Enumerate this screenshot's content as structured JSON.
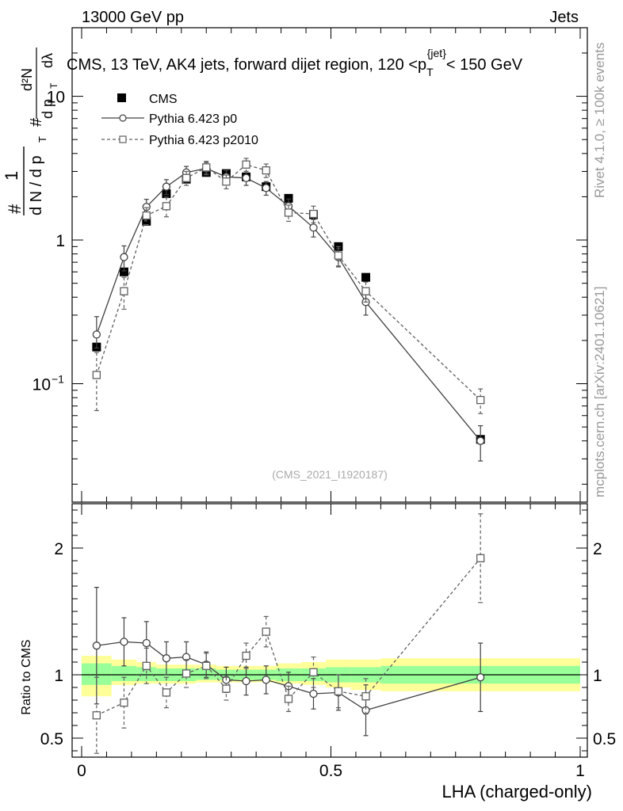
{
  "header": {
    "left": "13000 GeV pp",
    "right": "Jets"
  },
  "watermark": {
    "rivet": "Rivet 4.1.0, ≥ 100k events",
    "mcplots": "mcplots.cern.ch [arXiv:2401.10621]",
    "analysis": "(CMS_2021_I1920187)"
  },
  "colors": {
    "pythia_p0": "#404040",
    "pythia_p2010": "#606060",
    "band_inner": "#99ff99",
    "band_outer": "#ffff99"
  },
  "chart_data": [
    {
      "type": "line",
      "id": "main",
      "title": "CMS, 13 TeV, AK4 jets, forward dijet region, 120 <p_T^{jet}< 150 GeV",
      "title_parts": {
        "pre": "CMS, 13 TeV, AK4 jets, forward dijet region, 120 <p",
        "sub": "T",
        "sup": "{jet}",
        "post": "< 150 GeV"
      },
      "ylabel": "1/(dN/dp_T) d²N/(dp_T dλ)",
      "ylabel_parts": {
        "one": "1",
        "hash": "#",
        "den": "d N / d p",
        "T": "T",
        "d2N": "d²N",
        "dpT": "d p",
        "dlambda": "dλ"
      },
      "yscale": "log",
      "ylim": [
        0.015,
        30
      ],
      "xlim": [
        0,
        1
      ],
      "yticks": [
        {
          "v": 0.1,
          "label": "10",
          "exp": "−1"
        },
        {
          "v": 1,
          "label": "1"
        },
        {
          "v": 10,
          "label": "10"
        }
      ],
      "legend": [
        "CMS",
        "Pythia 6.423 p0",
        "Pythia 6.423 p2010"
      ],
      "series": [
        {
          "name": "CMS",
          "style": "data",
          "x": [
            0.03,
            0.085,
            0.13,
            0.17,
            0.21,
            0.25,
            0.29,
            0.33,
            0.37,
            0.415,
            0.465,
            0.515,
            0.57,
            0.8
          ],
          "y": [
            0.18,
            0.6,
            1.35,
            2.1,
            2.65,
            2.95,
            2.9,
            2.75,
            2.35,
            1.95,
            1.5,
            0.9,
            0.55,
            0.041
          ]
        },
        {
          "name": "Pythia 6.423 p0",
          "style": "solid",
          "x": [
            0.03,
            0.085,
            0.13,
            0.17,
            0.21,
            0.25,
            0.29,
            0.33,
            0.37,
            0.415,
            0.465,
            0.515,
            0.57,
            0.8
          ],
          "y": [
            0.22,
            0.76,
            1.7,
            2.35,
            2.95,
            3.15,
            2.75,
            2.7,
            2.3,
            1.72,
            1.22,
            0.76,
            0.37,
            0.04
          ],
          "err_lo": [
            0.043,
            0.15,
            0.22,
            0.28,
            0.3,
            0.31,
            0.29,
            0.3,
            0.25,
            0.21,
            0.17,
            0.11,
            0.07,
            0.011
          ],
          "err_hi": [
            0.073,
            0.15,
            0.22,
            0.28,
            0.3,
            0.31,
            0.29,
            0.3,
            0.25,
            0.21,
            0.17,
            0.11,
            0.07,
            0.011
          ]
        },
        {
          "name": "Pythia 6.423 p2010",
          "style": "dashed",
          "x": [
            0.03,
            0.085,
            0.13,
            0.17,
            0.21,
            0.25,
            0.29,
            0.33,
            0.37,
            0.415,
            0.465,
            0.515,
            0.57,
            0.8
          ],
          "y": [
            0.115,
            0.44,
            1.48,
            1.72,
            2.7,
            3.2,
            2.55,
            3.35,
            3.05,
            1.55,
            1.52,
            0.78,
            0.44,
            0.077
          ],
          "err_lo": [
            0.05,
            0.11,
            0.2,
            0.27,
            0.3,
            0.33,
            0.28,
            0.35,
            0.33,
            0.2,
            0.2,
            0.12,
            0.07,
            0.015
          ],
          "err_hi": [
            0.05,
            0.11,
            0.2,
            0.27,
            0.3,
            0.33,
            0.28,
            0.35,
            0.33,
            0.2,
            0.2,
            0.12,
            0.07,
            0.015
          ]
        }
      ]
    },
    {
      "type": "line",
      "id": "ratio",
      "ylabel": "Ratio to CMS",
      "xlabel": "LHA (charged-only)",
      "ylim": [
        0.35,
        2.35
      ],
      "xlim": [
        0,
        1
      ],
      "yticks": [
        {
          "v": 0.5,
          "label": "0.5"
        },
        {
          "v": 1,
          "label": "1"
        },
        {
          "v": 2,
          "label": "2"
        }
      ],
      "xticks": [
        {
          "v": 0,
          "label": "0"
        },
        {
          "v": 0.5,
          "label": "0.5"
        },
        {
          "v": 1,
          "label": "1"
        }
      ],
      "band_edges": [
        0,
        0.06,
        0.11,
        0.15,
        0.19,
        0.23,
        0.27,
        0.31,
        0.35,
        0.39,
        0.44,
        0.49,
        0.54,
        0.6,
        1.0
      ],
      "band_inner_lo": [
        0.92,
        0.95,
        0.95,
        0.95,
        0.95,
        0.96,
        0.96,
        0.96,
        0.96,
        0.95,
        0.95,
        0.94,
        0.94,
        0.93
      ],
      "band_inner_hi": [
        1.09,
        1.07,
        1.06,
        1.05,
        1.05,
        1.05,
        1.04,
        1.04,
        1.04,
        1.05,
        1.05,
        1.06,
        1.06,
        1.07
      ],
      "band_outer_lo": [
        0.83,
        0.92,
        0.93,
        0.93,
        0.93,
        0.94,
        0.94,
        0.94,
        0.94,
        0.93,
        0.92,
        0.9,
        0.88,
        0.87
      ],
      "band_outer_hi": [
        1.15,
        1.12,
        1.1,
        1.08,
        1.08,
        1.08,
        1.07,
        1.07,
        1.07,
        1.09,
        1.1,
        1.12,
        1.12,
        1.13
      ],
      "series": [
        {
          "name": "Pythia 6.423 p0",
          "style": "solid",
          "x": [
            0.03,
            0.085,
            0.13,
            0.17,
            0.21,
            0.25,
            0.29,
            0.33,
            0.37,
            0.415,
            0.465,
            0.515,
            0.57,
            0.8
          ],
          "y": [
            1.23,
            1.26,
            1.25,
            1.13,
            1.14,
            1.08,
            0.96,
            0.95,
            0.96,
            0.91,
            0.85,
            0.86,
            0.72,
            0.98
          ],
          "err": [
            0.46,
            0.19,
            0.17,
            0.13,
            0.12,
            0.1,
            0.1,
            0.11,
            0.11,
            0.11,
            0.12,
            0.14,
            0.2,
            0.27
          ]
        },
        {
          "name": "Pythia 6.423 p2010",
          "style": "dashed",
          "x": [
            0.03,
            0.085,
            0.13,
            0.17,
            0.21,
            0.25,
            0.29,
            0.33,
            0.37,
            0.415,
            0.465,
            0.515,
            0.57,
            0.8
          ],
          "y": [
            0.68,
            0.78,
            1.07,
            0.86,
            1.01,
            1.07,
            0.89,
            1.15,
            1.34,
            0.81,
            1.02,
            0.87,
            0.83,
            1.92
          ],
          "err": [
            0.3,
            0.2,
            0.14,
            0.12,
            0.11,
            0.1,
            0.09,
            0.1,
            0.12,
            0.1,
            0.12,
            0.13,
            0.14,
            0.35
          ]
        }
      ]
    }
  ]
}
